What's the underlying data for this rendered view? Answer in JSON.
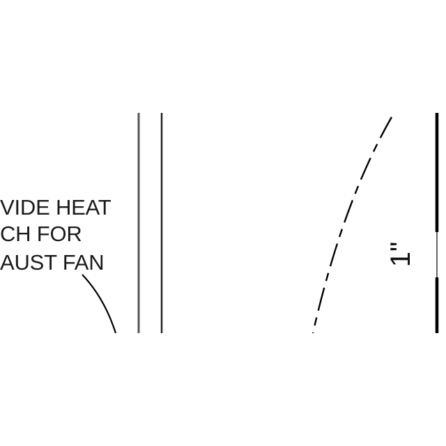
{
  "note": {
    "lines": [
      "VIDE HEAT",
      "CH FOR",
      "AUST FAN"
    ]
  },
  "dimension": {
    "label": "1\""
  },
  "colors": {
    "background": "#ffffff",
    "linework": "#000000",
    "wall_gray": "#555555"
  }
}
